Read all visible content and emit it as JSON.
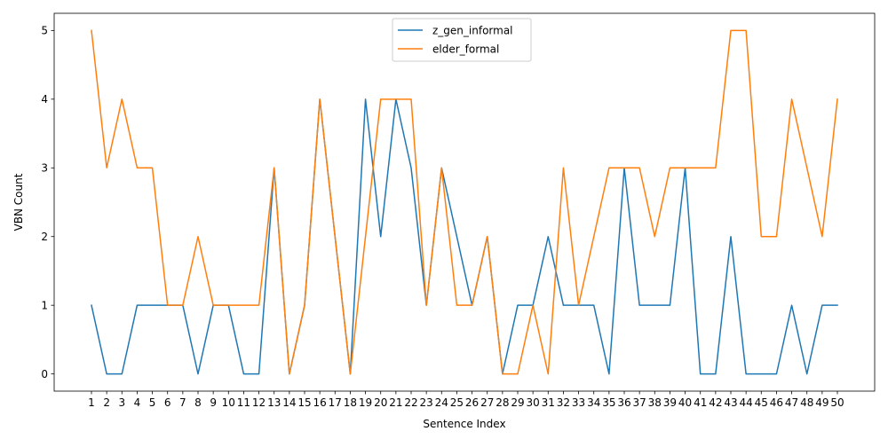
{
  "chart_data": {
    "type": "line",
    "title": "",
    "xlabel": "Sentence Index",
    "ylabel": "VBN Count",
    "x": [
      1,
      2,
      3,
      4,
      5,
      6,
      7,
      8,
      9,
      10,
      11,
      12,
      13,
      14,
      15,
      16,
      17,
      18,
      19,
      20,
      21,
      22,
      23,
      24,
      25,
      26,
      27,
      28,
      29,
      30,
      31,
      32,
      33,
      34,
      35,
      36,
      37,
      38,
      39,
      40,
      41,
      42,
      43,
      44,
      45,
      46,
      47,
      48,
      49,
      50
    ],
    "xticks": [
      "1",
      "2",
      "3",
      "4",
      "5",
      "6",
      "7",
      "8",
      "9",
      "10",
      "11",
      "12",
      "13",
      "14",
      "15",
      "16",
      "17",
      "18",
      "19",
      "20",
      "21",
      "22",
      "23",
      "24",
      "25",
      "26",
      "27",
      "28",
      "29",
      "30",
      "31",
      "32",
      "33",
      "34",
      "35",
      "36",
      "37",
      "38",
      "39",
      "40",
      "41",
      "42",
      "43",
      "44",
      "45",
      "46",
      "47",
      "48",
      "49",
      "50"
    ],
    "yticks": [
      "0",
      "1",
      "2",
      "3",
      "4",
      "5"
    ],
    "xlim": [
      -1.45,
      52.45
    ],
    "ylim": [
      -0.25,
      5.25
    ],
    "grid": false,
    "legend_position": "top-center",
    "series": [
      {
        "name": "z_gen_informal",
        "color": "#1f77b4",
        "values": [
          1,
          0,
          0,
          1,
          1,
          1,
          1,
          0,
          1,
          1,
          0,
          0,
          3,
          0,
          1,
          4,
          2,
          0,
          4,
          2,
          4,
          3,
          1,
          3,
          2,
          1,
          2,
          0,
          1,
          1,
          2,
          1,
          1,
          1,
          0,
          3,
          1,
          1,
          1,
          3,
          0,
          0,
          2,
          0,
          0,
          0,
          1,
          0,
          1,
          1
        ]
      },
      {
        "name": "elder_formal",
        "color": "#ff7f0e",
        "values": [
          5,
          3,
          4,
          3,
          3,
          1,
          1,
          2,
          1,
          1,
          1,
          1,
          3,
          0,
          1,
          4,
          2,
          0,
          2,
          4,
          4,
          4,
          1,
          3,
          1,
          1,
          2,
          0,
          0,
          1,
          0,
          3,
          1,
          2,
          3,
          3,
          3,
          2,
          3,
          3,
          3,
          3,
          5,
          5,
          2,
          2,
          4,
          3,
          2,
          4
        ]
      }
    ]
  }
}
